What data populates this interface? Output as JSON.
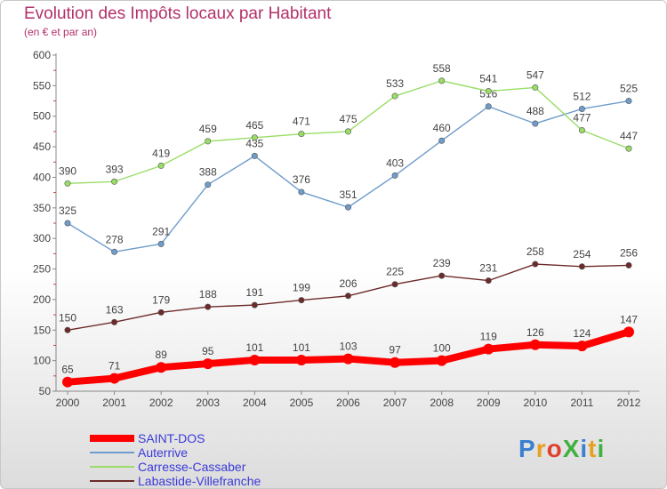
{
  "header": {
    "title": "Evolution des Impôts locaux par Habitant",
    "subtitle": "(en € et par an)"
  },
  "logo": {
    "text": "ProXiti",
    "colors": [
      "#3a7fd0",
      "#e8a020",
      "#e04030",
      "#40b040",
      "#3a7fd0",
      "#e8a020",
      "#40b040"
    ]
  },
  "chart_data": {
    "type": "line",
    "x": [
      "2000",
      "2001",
      "2002",
      "2003",
      "2004",
      "2005",
      "2006",
      "2007",
      "2008",
      "2009",
      "2010",
      "2011",
      "2012"
    ],
    "ylim": [
      50,
      600
    ],
    "yticks": [
      50,
      100,
      150,
      200,
      250,
      300,
      350,
      400,
      450,
      500,
      550,
      600
    ],
    "grid": false,
    "legend_position": "bottom-left",
    "series": [
      {
        "name": "SAINT-DOS",
        "color": "#ff0000",
        "values": [
          65,
          71,
          89,
          95,
          101,
          101,
          103,
          97,
          100,
          119,
          126,
          124,
          147
        ]
      },
      {
        "name": "Auterrive",
        "color": "#6f9ccb",
        "values": [
          325,
          278,
          291,
          388,
          435,
          376,
          351,
          403,
          460,
          516,
          488,
          512,
          525
        ]
      },
      {
        "name": "Carresse-Cassaber",
        "color": "#99dd66",
        "values": [
          390,
          393,
          419,
          459,
          465,
          471,
          475,
          533,
          558,
          541,
          547,
          477,
          447
        ]
      },
      {
        "name": "Labastide-Villefranche",
        "color": "#6e2a2a",
        "values": [
          150,
          163,
          179,
          188,
          191,
          199,
          206,
          225,
          239,
          231,
          258,
          254,
          256
        ]
      }
    ]
  }
}
